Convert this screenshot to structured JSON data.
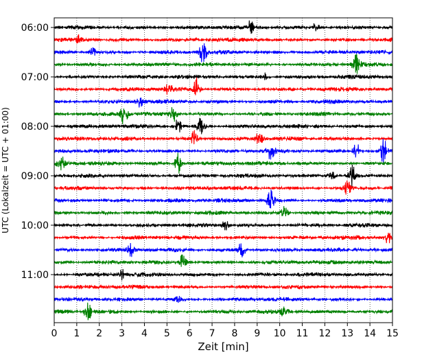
{
  "chart_data": {
    "type": "line",
    "title": "",
    "xlabel": "Zeit  [min]",
    "ylabel": "UTC (Lokalzeit = UTC + 01:00)",
    "xlim": [
      0,
      15
    ],
    "x_ticks": [
      "0",
      "1",
      "2",
      "3",
      "4",
      "5",
      "6",
      "7",
      "8",
      "9",
      "10",
      "11",
      "12",
      "13",
      "14",
      "15"
    ],
    "y_ticks": [
      {
        "label": "06:00",
        "row": 0
      },
      {
        "label": "07:00",
        "row": 4
      },
      {
        "label": "08:00",
        "row": 8
      },
      {
        "label": "09:00",
        "row": 12
      },
      {
        "label": "10:00",
        "row": 16
      },
      {
        "label": "11:00",
        "row": 20
      }
    ],
    "grid": "vertical-dotted",
    "trace_colors": [
      "#000000",
      "#ff0000",
      "#0000ff",
      "#008000"
    ],
    "traces": [
      {
        "start": "06:00",
        "color": "#000000",
        "events": [
          {
            "t": 8.7,
            "amp": 0.9
          },
          {
            "t": 11.6,
            "amp": 0.7
          }
        ]
      },
      {
        "start": "06:15",
        "color": "#ff0000",
        "events": [
          {
            "t": 1.1,
            "amp": 0.7
          }
        ]
      },
      {
        "start": "06:30",
        "color": "#0000ff",
        "events": [
          {
            "t": 6.6,
            "amp": 1.5
          },
          {
            "t": 1.7,
            "amp": 0.6
          }
        ]
      },
      {
        "start": "06:45",
        "color": "#008000",
        "events": [
          {
            "t": 13.4,
            "amp": 1.8
          }
        ]
      },
      {
        "start": "07:00",
        "color": "#000000",
        "events": [
          {
            "t": 9.3,
            "amp": 0.6
          }
        ]
      },
      {
        "start": "07:15",
        "color": "#ff0000",
        "events": [
          {
            "t": 6.3,
            "amp": 1.6
          },
          {
            "t": 5.1,
            "amp": 0.9
          }
        ]
      },
      {
        "start": "07:30",
        "color": "#0000ff",
        "events": [
          {
            "t": 3.8,
            "amp": 0.7
          }
        ]
      },
      {
        "start": "07:45",
        "color": "#008000",
        "events": [
          {
            "t": 3.1,
            "amp": 1.7
          },
          {
            "t": 5.3,
            "amp": 1.3
          }
        ]
      },
      {
        "start": "08:00",
        "color": "#000000",
        "events": [
          {
            "t": 6.5,
            "amp": 1.5
          },
          {
            "t": 5.5,
            "amp": 1.2
          }
        ]
      },
      {
        "start": "08:15",
        "color": "#ff0000",
        "events": [
          {
            "t": 6.2,
            "amp": 1.2
          },
          {
            "t": 9.1,
            "amp": 1.0
          }
        ]
      },
      {
        "start": "08:30",
        "color": "#0000ff",
        "events": [
          {
            "t": 14.6,
            "amp": 1.7
          },
          {
            "t": 9.6,
            "amp": 1.3
          },
          {
            "t": 13.4,
            "amp": 1.2
          }
        ]
      },
      {
        "start": "08:45",
        "color": "#008000",
        "events": [
          {
            "t": 5.5,
            "amp": 1.5
          },
          {
            "t": 0.3,
            "amp": 1.0
          }
        ]
      },
      {
        "start": "09:00",
        "color": "#000000",
        "events": [
          {
            "t": 13.2,
            "amp": 1.5
          },
          {
            "t": 12.3,
            "amp": 0.8
          }
        ]
      },
      {
        "start": "09:15",
        "color": "#ff0000",
        "events": [
          {
            "t": 13.0,
            "amp": 0.9
          }
        ]
      },
      {
        "start": "09:30",
        "color": "#0000ff",
        "events": [
          {
            "t": 9.6,
            "amp": 1.6
          }
        ]
      },
      {
        "start": "09:45",
        "color": "#008000",
        "events": [
          {
            "t": 10.2,
            "amp": 1.2
          }
        ]
      },
      {
        "start": "10:00",
        "color": "#000000",
        "events": [
          {
            "t": 7.6,
            "amp": 0.7
          }
        ]
      },
      {
        "start": "10:15",
        "color": "#ff0000",
        "events": [
          {
            "t": 14.8,
            "amp": 0.9
          }
        ]
      },
      {
        "start": "10:30",
        "color": "#0000ff",
        "events": [
          {
            "t": 8.3,
            "amp": 1.4
          },
          {
            "t": 3.4,
            "amp": 0.8
          }
        ]
      },
      {
        "start": "10:45",
        "color": "#008000",
        "events": [
          {
            "t": 5.7,
            "amp": 1.1
          }
        ]
      },
      {
        "start": "11:00",
        "color": "#000000",
        "events": [
          {
            "t": 3.0,
            "amp": 0.7
          }
        ]
      },
      {
        "start": "11:15",
        "color": "#ff0000",
        "events": []
      },
      {
        "start": "11:30",
        "color": "#0000ff",
        "events": [
          {
            "t": 5.5,
            "amp": 0.5
          }
        ]
      },
      {
        "start": "11:45",
        "color": "#008000",
        "events": [
          {
            "t": 1.5,
            "amp": 1.2
          },
          {
            "t": 10.2,
            "amp": 0.9
          }
        ]
      }
    ]
  }
}
